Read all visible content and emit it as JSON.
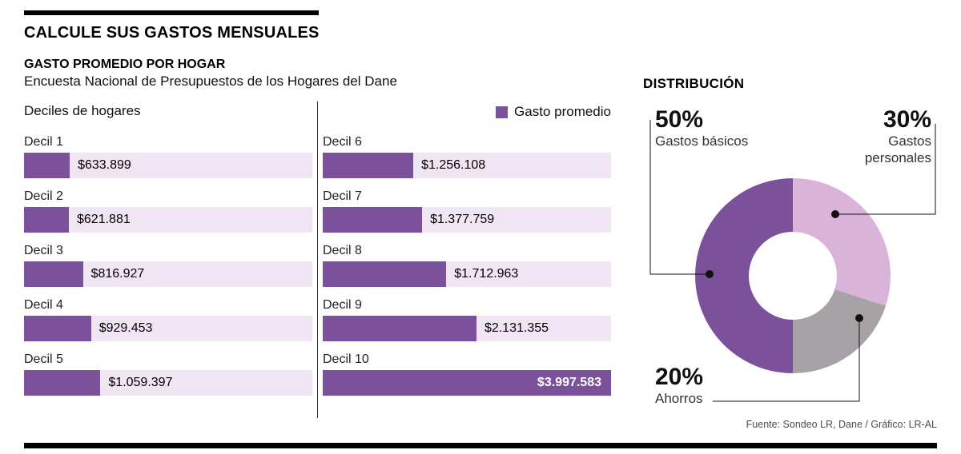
{
  "header": {
    "title": "CALCULE SUS GASTOS MENSUALES",
    "subtitle": "GASTO PROMEDIO POR HOGAR",
    "survey": "Encuesta Nacional de Presupuestos de los Hogares del Dane"
  },
  "bar_section": {
    "axis_label": "Deciles de hogares",
    "legend_label": "Gasto promedio"
  },
  "distribution": {
    "title": "DISTRIBUCIÓN",
    "callouts": [
      {
        "pct": "50%",
        "label": "Gastos básicos"
      },
      {
        "pct": "30%",
        "label": "Gastos personales"
      },
      {
        "pct": "20%",
        "label": "Ahorros"
      }
    ]
  },
  "footer": {
    "credit": "Fuente: Sondeo LR, Dane / Gráfico: LR-AL"
  },
  "colors": {
    "purple": "#7c519b",
    "track": "#f0e5f3",
    "pink": "#d9b3d8",
    "gray": "#a6a2a6",
    "rule": "#000000"
  },
  "chart_data": [
    {
      "type": "bar",
      "orientation": "horizontal",
      "title": "GASTO PROMEDIO POR HOGAR",
      "series_name": "Gasto promedio",
      "categories": [
        "Decil 1",
        "Decil 2",
        "Decil 3",
        "Decil 4",
        "Decil 5",
        "Decil 6",
        "Decil 7",
        "Decil 8",
        "Decil 9",
        "Decil 10"
      ],
      "values": [
        633899,
        621881,
        816927,
        929453,
        1059397,
        1256108,
        1377759,
        1712963,
        2131355,
        3997583
      ],
      "value_labels": [
        "$633.899",
        "$621.881",
        "$816.927",
        "$929.453",
        "$1.059.397",
        "$1.256.108",
        "$1.377.759",
        "$1.712.963",
        "$2.131.355",
        "$3.997.583"
      ],
      "xlim": [
        0,
        3997583
      ],
      "grid": false,
      "legend_position": "top-right"
    },
    {
      "type": "pie",
      "donut": true,
      "title": "DISTRIBUCIÓN",
      "labels": [
        "Gastos básicos",
        "Gastos personales",
        "Ahorros"
      ],
      "values": [
        50,
        30,
        20
      ],
      "colors": [
        "#7c519b",
        "#d9b3d8",
        "#a6a2a6"
      ],
      "start_angle_deg": 180,
      "clockwise": true
    }
  ]
}
